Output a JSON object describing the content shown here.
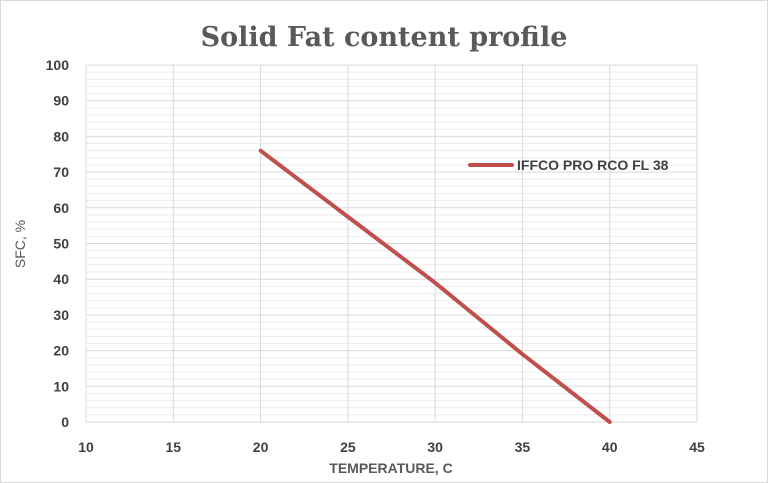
{
  "chart_data": {
    "type": "line",
    "title": "Solid Fat content profile",
    "xlabel": "TEMPERATURE, C",
    "ylabel": "SFC, %",
    "xlim": [
      10,
      45
    ],
    "ylim": [
      0,
      100
    ],
    "x_ticks": [
      "10",
      "15",
      "20",
      "25",
      "30",
      "35",
      "40",
      "45"
    ],
    "y_ticks": [
      "0",
      "10",
      "20",
      "30",
      "40",
      "50",
      "60",
      "70",
      "80",
      "90",
      "100"
    ],
    "grid": true,
    "legend_position": "right",
    "series": [
      {
        "name": "IFFCO PRO RCO FL 38",
        "color": "#c0504d",
        "x": [
          20,
          25,
          30,
          35,
          40
        ],
        "y": [
          76,
          57.5,
          39,
          19,
          0
        ]
      }
    ]
  }
}
